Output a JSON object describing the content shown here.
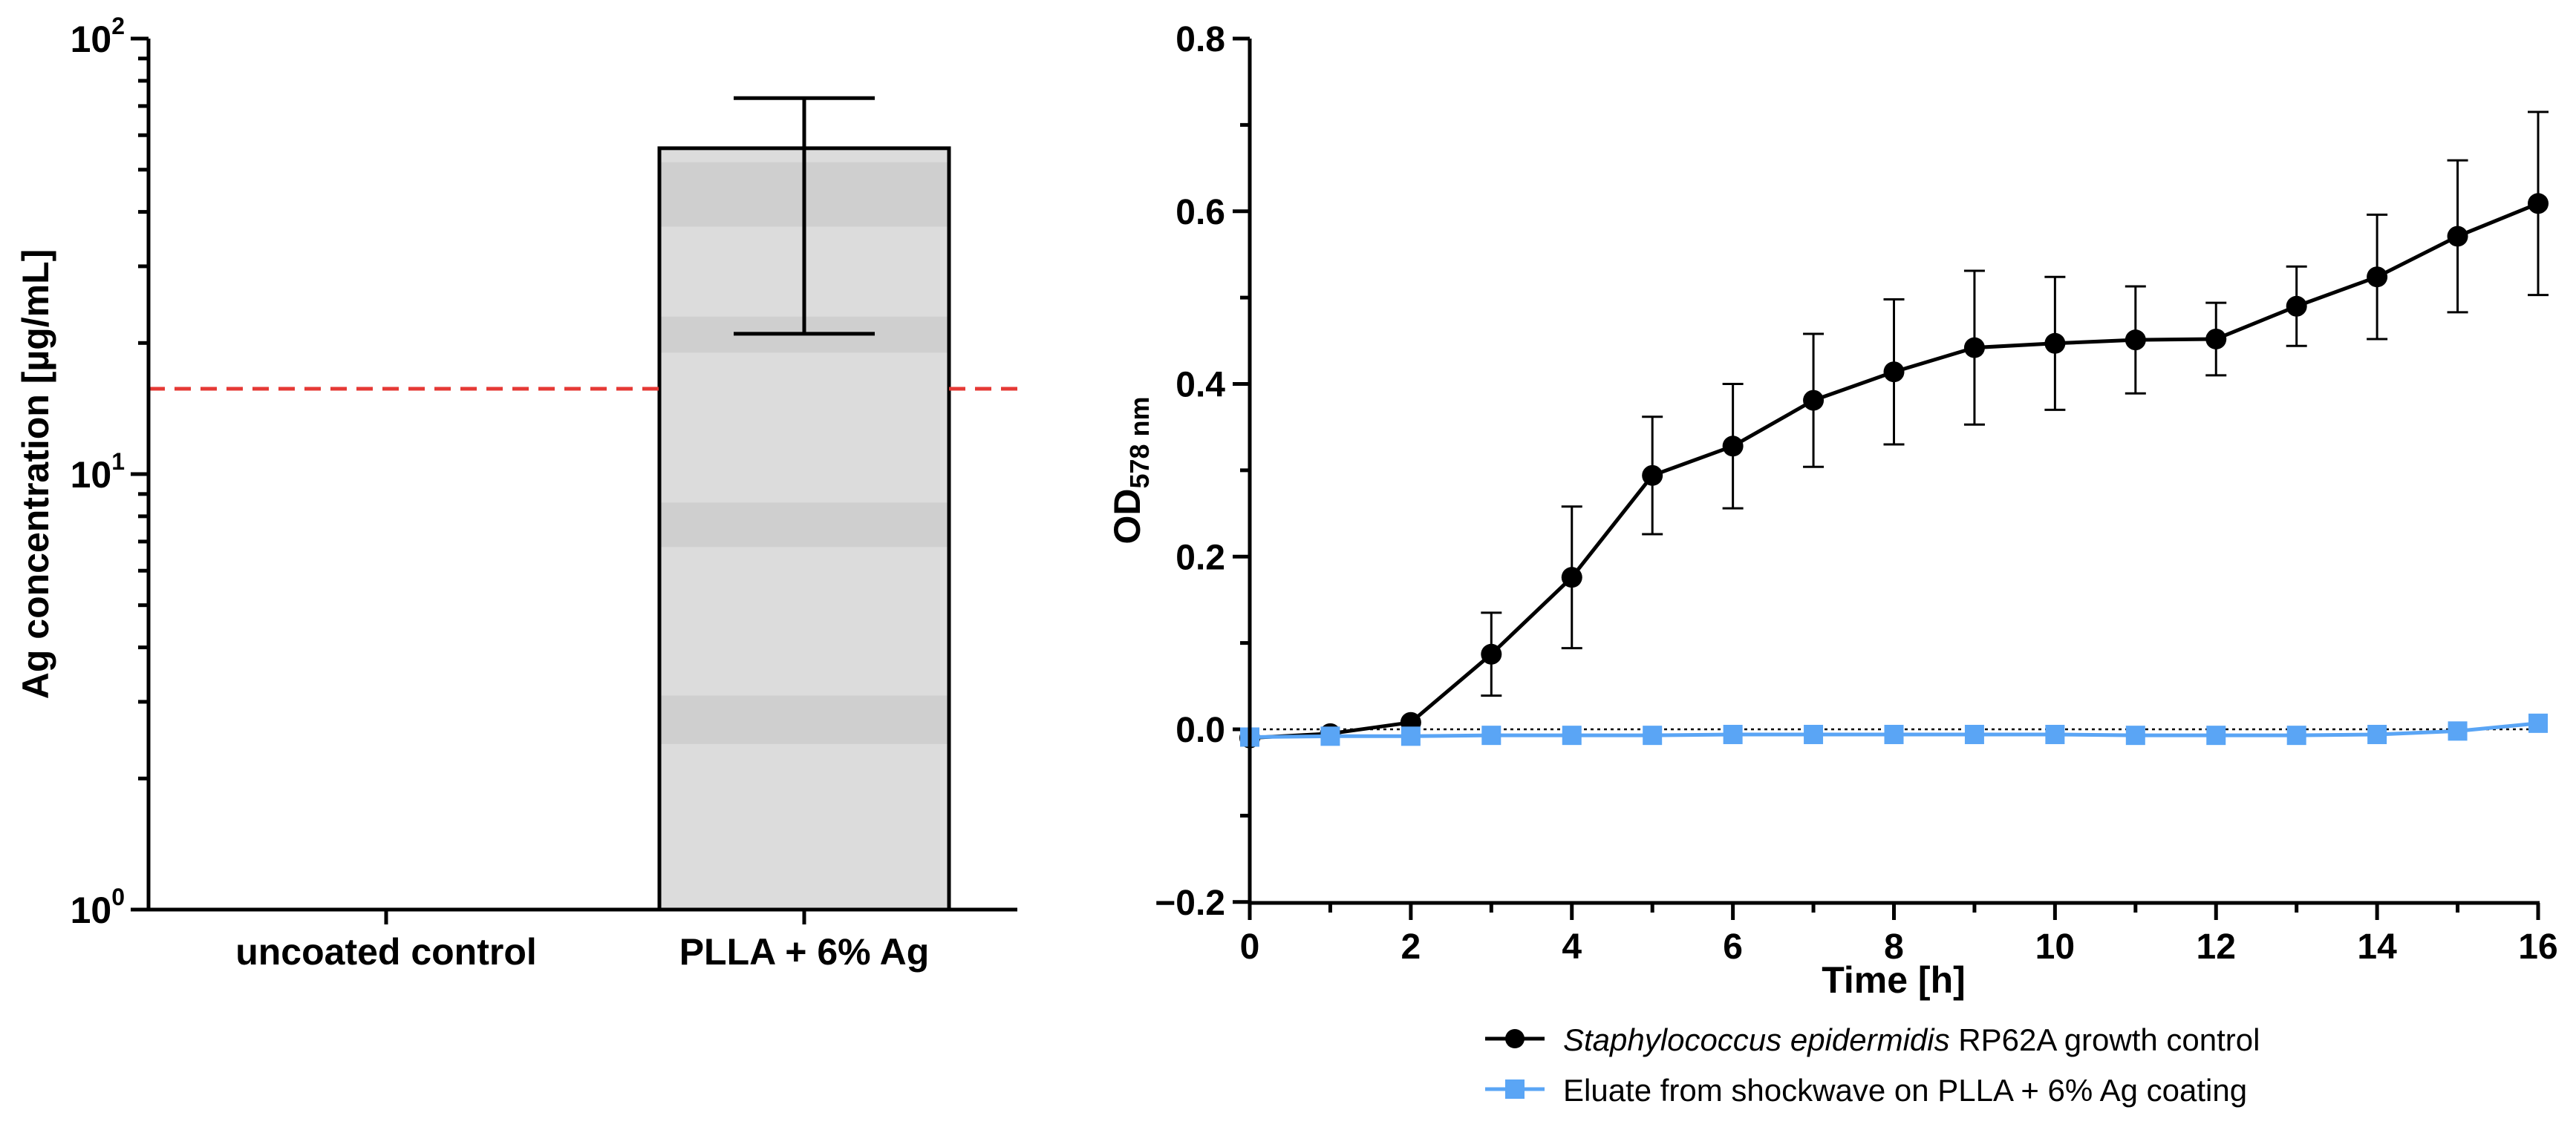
{
  "chart_data": [
    {
      "type": "bar",
      "panel": "left",
      "scale": "log",
      "categories": [
        "uncoated control",
        "PLLA + 6% Ag"
      ],
      "values": [
        null,
        56.0
      ],
      "error_upper": [
        null,
        73.0
      ],
      "error_lower": [
        null,
        21.0
      ],
      "reference_line": {
        "value": 15.7,
        "color": "#e53935",
        "style": "dashed"
      },
      "title": "",
      "xlabel": "",
      "ylabel": "Ag concentration [µg/mL]",
      "ylim": [
        1,
        100
      ],
      "ytick_labels": [
        {
          "base": "10",
          "exp": "0"
        },
        {
          "base": "10",
          "exp": "1"
        },
        {
          "base": "10",
          "exp": "2"
        }
      ],
      "bar_fill": "#dcdcdc",
      "bar_band_fill": "#cfcfcf",
      "grid": false
    },
    {
      "type": "line",
      "panel": "right",
      "x": [
        0,
        1,
        2,
        3,
        4,
        5,
        6,
        7,
        8,
        9,
        10,
        11,
        12,
        13,
        14,
        15,
        16
      ],
      "series": [
        {
          "name_italic": "Staphylococcus epidermidis",
          "name_rest": " RP62A growth control",
          "marker": "circle",
          "color": "#000000",
          "values": [
            -0.01,
            -0.005,
            0.008,
            0.087,
            0.176,
            0.294,
            0.328,
            0.381,
            0.414,
            0.442,
            0.447,
            0.451,
            0.452,
            0.49,
            0.524,
            0.571,
            0.609
          ],
          "error": [
            0,
            0,
            0,
            0.048,
            0.082,
            0.068,
            0.072,
            0.077,
            0.084,
            0.089,
            0.077,
            0.062,
            0.042,
            0.046,
            0.072,
            0.088,
            0.106
          ]
        },
        {
          "name_italic": "",
          "name_rest": "Eluate from shockwave on PLLA + 6% Ag coating",
          "marker": "square",
          "color": "#5aa5f5",
          "values": [
            -0.009,
            -0.008,
            -0.008,
            -0.007,
            -0.007,
            -0.007,
            -0.006,
            -0.006,
            -0.006,
            -0.006,
            -0.006,
            -0.007,
            -0.007,
            -0.007,
            -0.006,
            -0.002,
            0.007
          ],
          "error": []
        }
      ],
      "zero_line": {
        "value": 0,
        "style": "dotted"
      },
      "title": "",
      "xlabel": "Time [h]",
      "ylabel_main": "OD",
      "ylabel_sub": "578 nm",
      "xlim": [
        0,
        16
      ],
      "ylim": [
        -0.2,
        0.8
      ],
      "xticks": [
        "0",
        "2",
        "4",
        "6",
        "8",
        "10",
        "12",
        "14",
        "16"
      ],
      "yticks": [
        "−0.2",
        "0.0",
        "0.2",
        "0.4",
        "0.6",
        "0.8"
      ],
      "legend_position": "bottom",
      "grid": false
    }
  ]
}
